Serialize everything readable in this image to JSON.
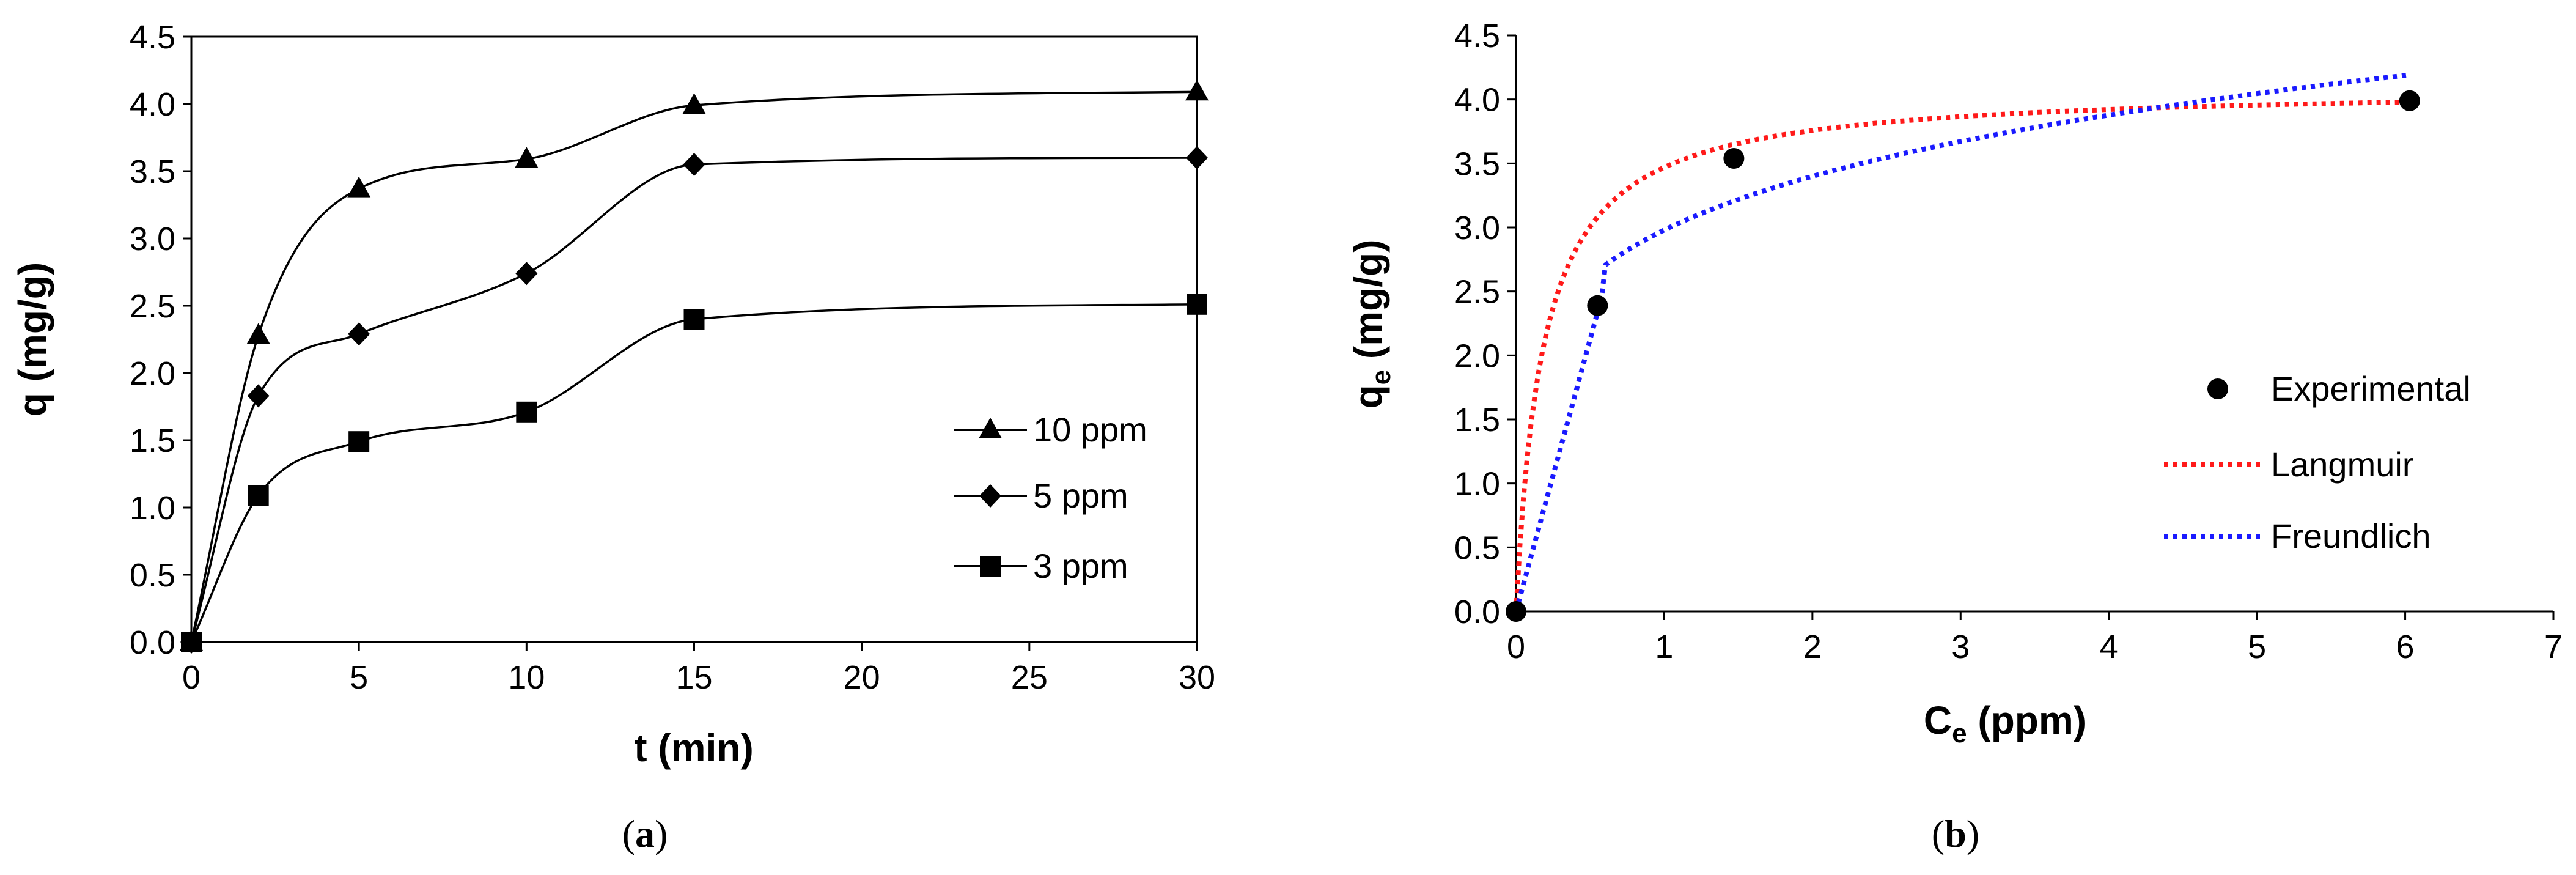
{
  "chart_data": [
    {
      "panel": "a",
      "type": "line",
      "panel_label": "a",
      "xlabel": "t (min)",
      "ylabel": "q (mg/g)",
      "xlim": [
        0,
        30
      ],
      "ylim": [
        0,
        4.5
      ],
      "xticks": [
        "0",
        "5",
        "10",
        "15",
        "20",
        "25",
        "30"
      ],
      "yticks": [
        "0.0",
        "0.5",
        "1.0",
        "1.5",
        "2.0",
        "2.5",
        "3.0",
        "3.5",
        "4.0",
        "4.5"
      ],
      "x": [
        0,
        2,
        5,
        10,
        15,
        30
      ],
      "series": [
        {
          "name": "10 ppm",
          "marker": "triangle",
          "values": [
            0,
            2.28,
            3.37,
            3.59,
            3.99,
            4.09
          ]
        },
        {
          "name": "5 ppm",
          "marker": "diamond",
          "values": [
            0,
            1.83,
            2.29,
            2.74,
            3.55,
            3.6
          ]
        },
        {
          "name": "3 ppm",
          "marker": "square",
          "values": [
            0,
            1.09,
            1.49,
            1.71,
            2.4,
            2.51
          ]
        }
      ],
      "legend": "bottom-right"
    },
    {
      "panel": "b",
      "type": "scatter",
      "panel_label": "b",
      "xlabel": "C",
      "xlabel_sub": "e",
      "xlabel_suffix": " (ppm)",
      "ylabel": "q",
      "ylabel_sub": "e",
      "ylabel_suffix": " (mg/g)",
      "xlim": [
        0,
        7
      ],
      "ylim": [
        0,
        4.5
      ],
      "xticks": [
        "0",
        "1",
        "2",
        "3",
        "4",
        "5",
        "6",
        "7"
      ],
      "yticks": [
        "0.0",
        "0.5",
        "1.0",
        "1.5",
        "2.0",
        "2.5",
        "3.0",
        "3.5",
        "4.0",
        "4.5"
      ],
      "experimental": {
        "name": "Experimental",
        "x": [
          0,
          0.55,
          1.47,
          6.03
        ],
        "y": [
          0,
          2.39,
          3.54,
          3.99
        ]
      },
      "models": [
        {
          "name": "Langmuir",
          "kind": "langmuir",
          "qmax": 4.1,
          "KL": 5.5,
          "color": "#ff1a1a",
          "xmax": 6.03
        },
        {
          "name": "Freundlich",
          "kind": "freundlich",
          "knee_x": 0.6,
          "knee_y": 2.55,
          "KF": 2.98,
          "n_inv": 0.19,
          "color": "#1a1aff",
          "xmax": 6.03
        }
      ],
      "legend": "right"
    }
  ]
}
